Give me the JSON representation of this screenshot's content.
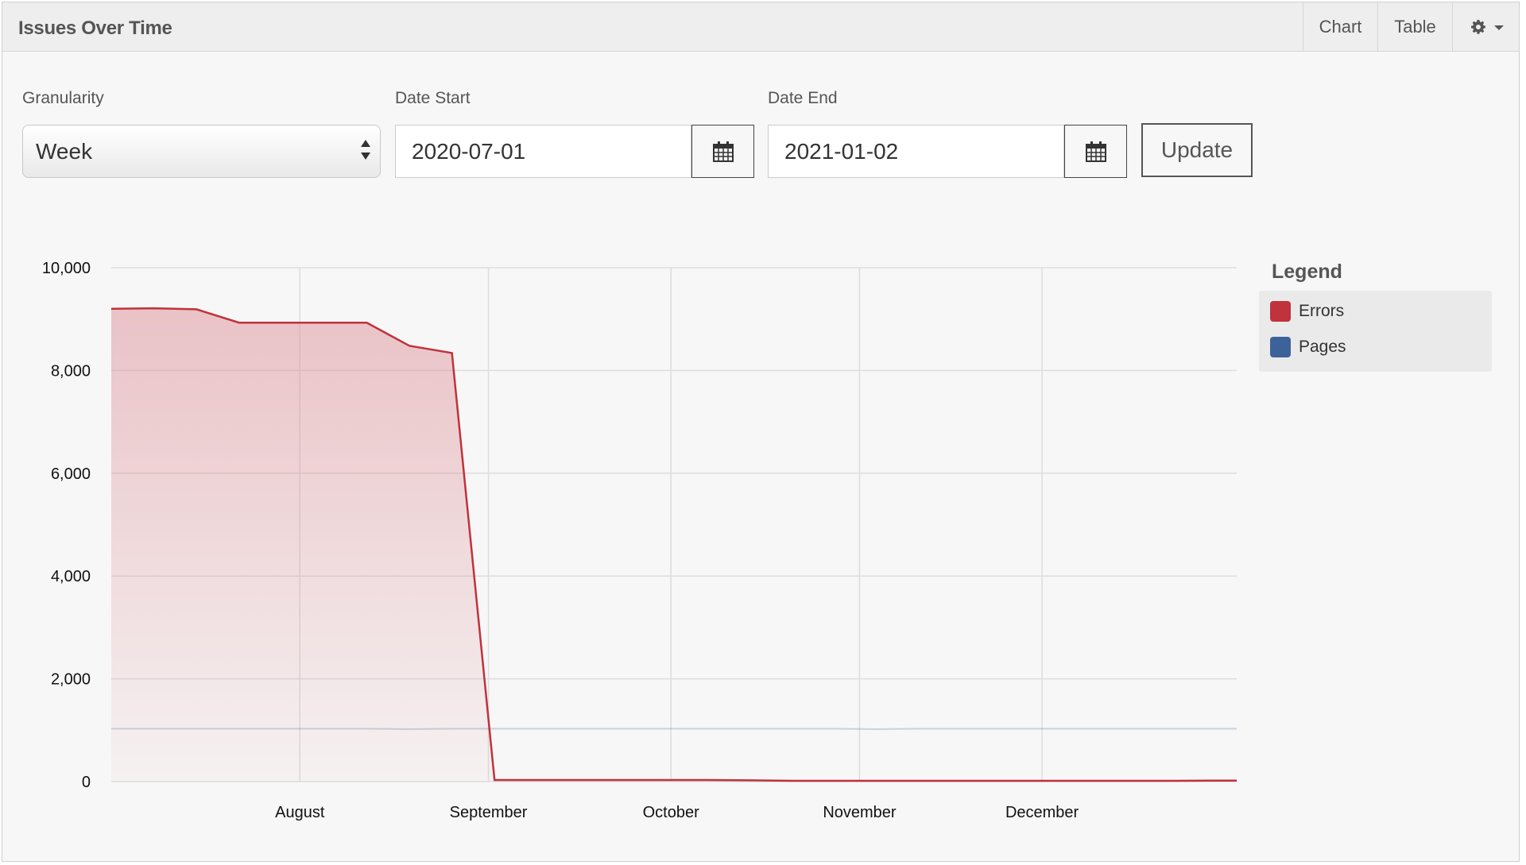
{
  "header": {
    "title": "Issues Over Time",
    "chart_label": "Chart",
    "table_label": "Table",
    "settings_icon": "gear-icon"
  },
  "filters": {
    "granularity_label": "Granularity",
    "granularity_value": "Week",
    "date_start_label": "Date Start",
    "date_start_value": "2020-07-01",
    "date_end_label": "Date End",
    "date_end_value": "2021-01-02",
    "calendar_icon": "calendar-icon",
    "update_label": "Update"
  },
  "legend": {
    "title": "Legend",
    "items": [
      {
        "label": "Errors",
        "color": "#c0323c"
      },
      {
        "label": "Pages",
        "color": "#3d6299"
      }
    ]
  },
  "chart_data": {
    "type": "area",
    "x_unit": "date",
    "xlim": [
      "2020-07-01",
      "2021-01-02"
    ],
    "ylim": [
      0,
      10000
    ],
    "yticks": [
      0,
      2000,
      4000,
      6000,
      8000,
      10000
    ],
    "ytick_labels": [
      "0",
      "2,000",
      "4,000",
      "6,000",
      "8,000",
      "10,000"
    ],
    "xticks": [
      "2020-08-01",
      "2020-09-01",
      "2020-10-01",
      "2020-11-01",
      "2020-12-01"
    ],
    "xtick_labels": [
      "August",
      "September",
      "October",
      "November",
      "December"
    ],
    "grid": true,
    "legend_position": "right",
    "x": [
      "2020-07-01",
      "2020-07-08",
      "2020-07-15",
      "2020-07-22",
      "2020-07-29",
      "2020-08-05",
      "2020-08-12",
      "2020-08-19",
      "2020-08-26",
      "2020-09-02",
      "2020-09-09",
      "2020-09-16",
      "2020-09-23",
      "2020-09-30",
      "2020-10-07",
      "2020-10-14",
      "2020-10-21",
      "2020-10-28",
      "2020-11-04",
      "2020-11-11",
      "2020-11-18",
      "2020-11-25",
      "2020-12-02",
      "2020-12-09",
      "2020-12-16",
      "2020-12-23",
      "2020-12-30",
      "2021-01-02"
    ],
    "series": [
      {
        "name": "Errors",
        "color": "#c0323c",
        "values": [
          9200,
          9210,
          9190,
          8930,
          8930,
          8930,
          8930,
          8480,
          8340,
          30,
          30,
          30,
          30,
          30,
          30,
          25,
          15,
          15,
          15,
          15,
          15,
          15,
          15,
          15,
          15,
          15,
          20,
          20
        ]
      },
      {
        "name": "Pages",
        "color": "#3d6299",
        "values": [
          1030,
          1030,
          1030,
          1030,
          1030,
          1030,
          1030,
          1020,
          1030,
          1030,
          1030,
          1030,
          1030,
          1030,
          1030,
          1030,
          1030,
          1030,
          1020,
          1030,
          1030,
          1030,
          1030,
          1030,
          1030,
          1030,
          1030,
          1030
        ]
      }
    ]
  }
}
